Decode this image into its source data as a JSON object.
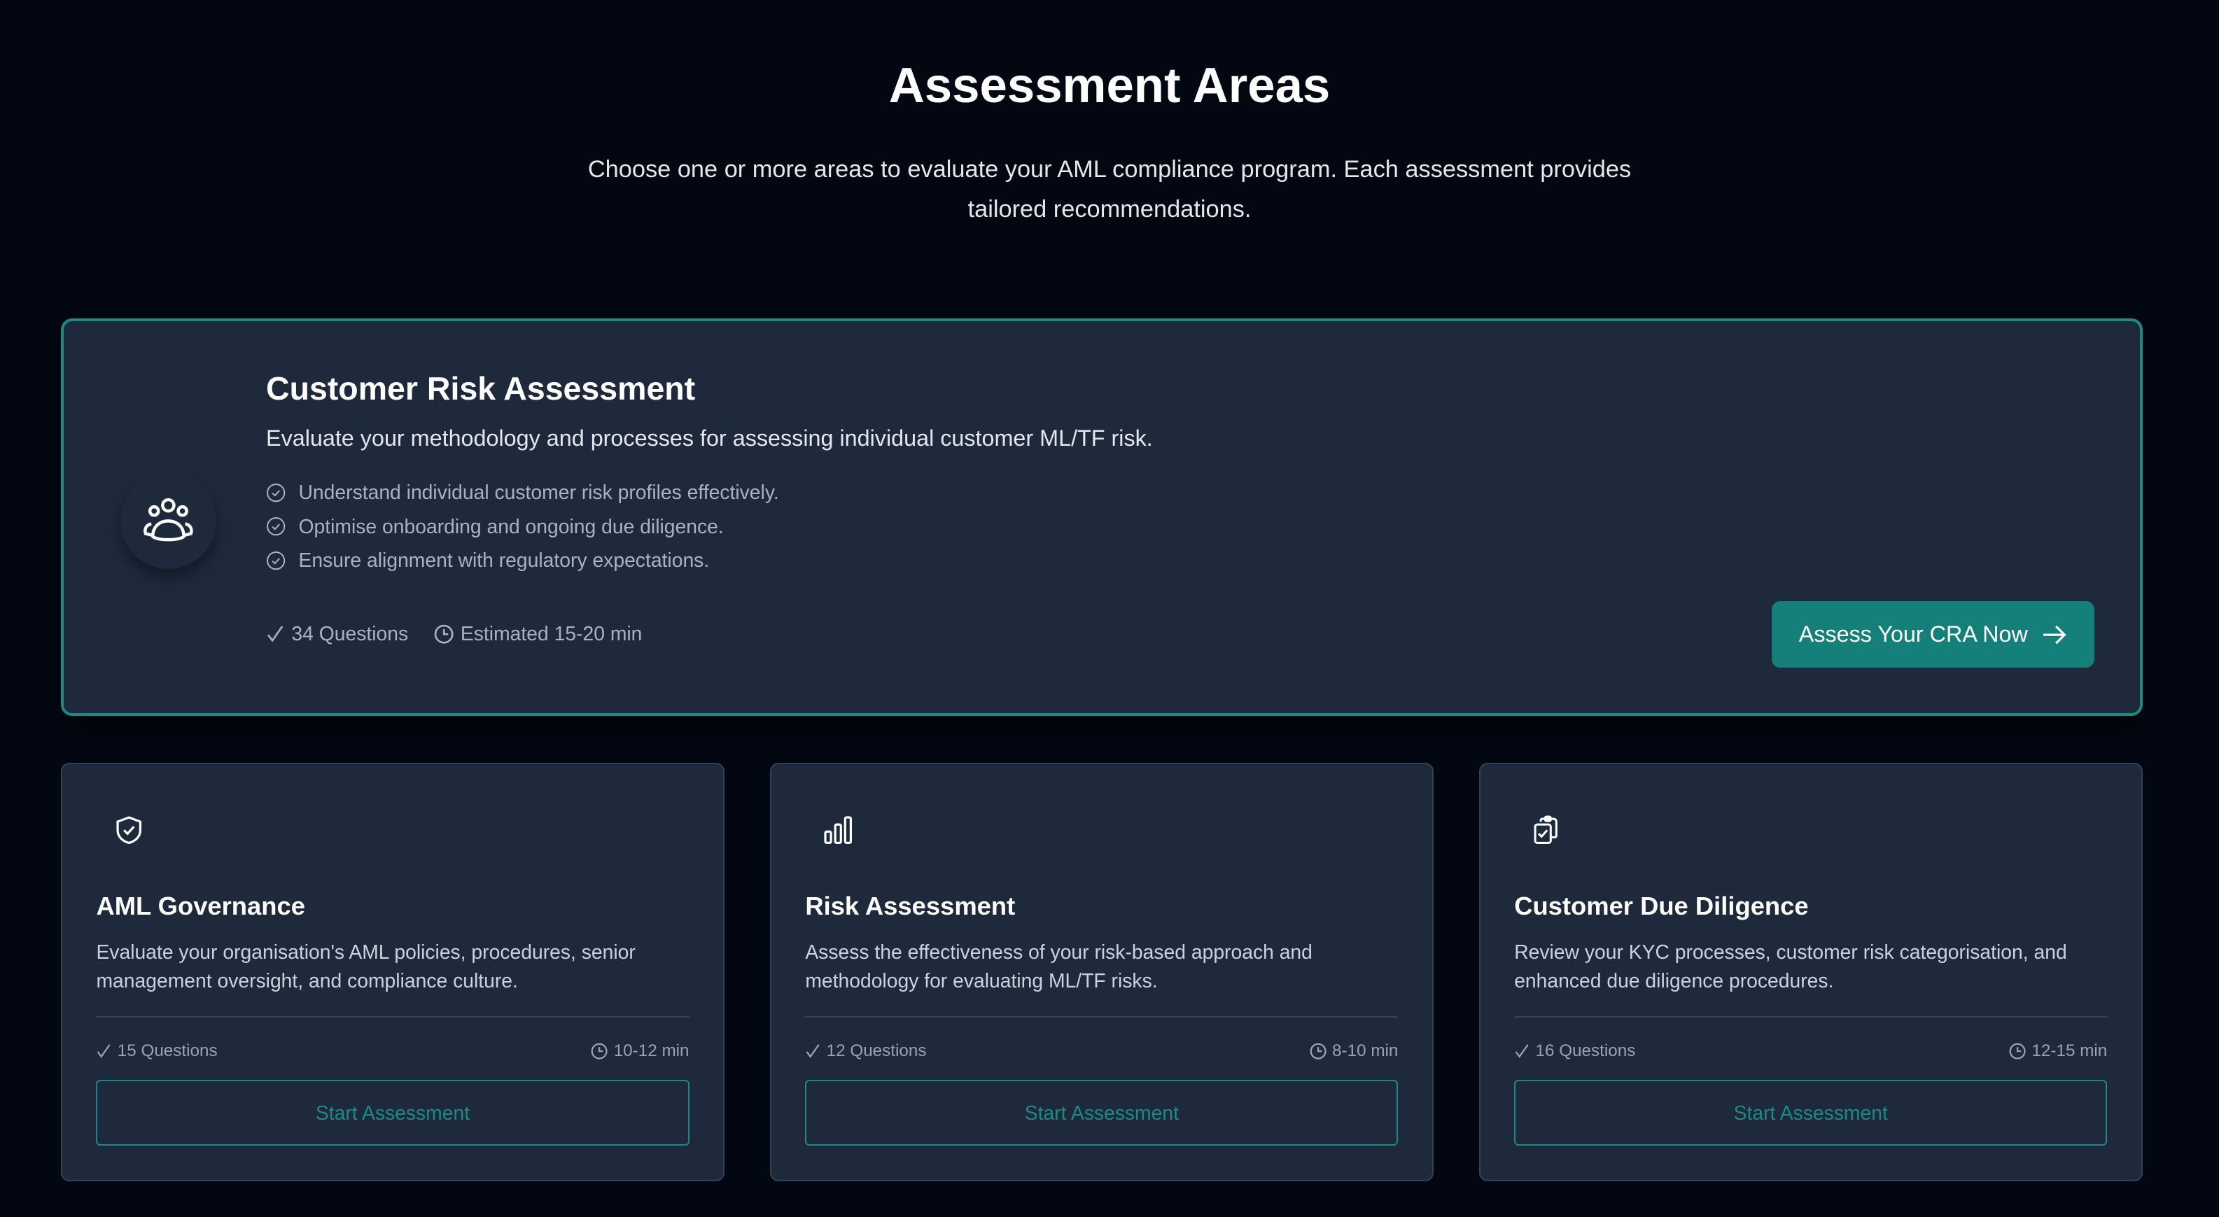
{
  "header": {
    "title": "Assessment Areas",
    "subtitle": "Choose one or more areas to evaluate your AML compliance program. Each assessment provides tailored recommendations."
  },
  "featured": {
    "title": "Customer Risk Assessment",
    "description": "Evaluate your methodology and processes for assessing individual customer ML/TF risk.",
    "bullets": [
      "Understand individual customer risk profiles effectively.",
      "Optimise onboarding and ongoing due diligence.",
      "Ensure alignment with regulatory expectations."
    ],
    "questions": "34 Questions",
    "time": "Estimated 15-20 min",
    "button": "Assess Your CRA Now",
    "icon": "users-icon",
    "accent": "#158079"
  },
  "cards": [
    {
      "title": "AML Governance",
      "description": "Evaluate your organisation's AML policies, procedures, senior management oversight, and compliance culture.",
      "questions": "15 Questions",
      "time": "10-12 min",
      "button": "Start Assessment",
      "icon": "shield-check-icon"
    },
    {
      "title": "Risk Assessment",
      "description": "Assess the effectiveness of your risk-based approach and methodology for evaluating ML/TF risks.",
      "questions": "12 Questions",
      "time": "8-10 min",
      "button": "Start Assessment",
      "icon": "bar-chart-icon"
    },
    {
      "title": "Customer Due Diligence",
      "description": "Review your KYC processes, customer risk categorisation, and enhanced due diligence procedures.",
      "questions": "16 Questions",
      "time": "12-15 min",
      "button": "Start Assessment",
      "icon": "clipboard-check-icon"
    }
  ]
}
